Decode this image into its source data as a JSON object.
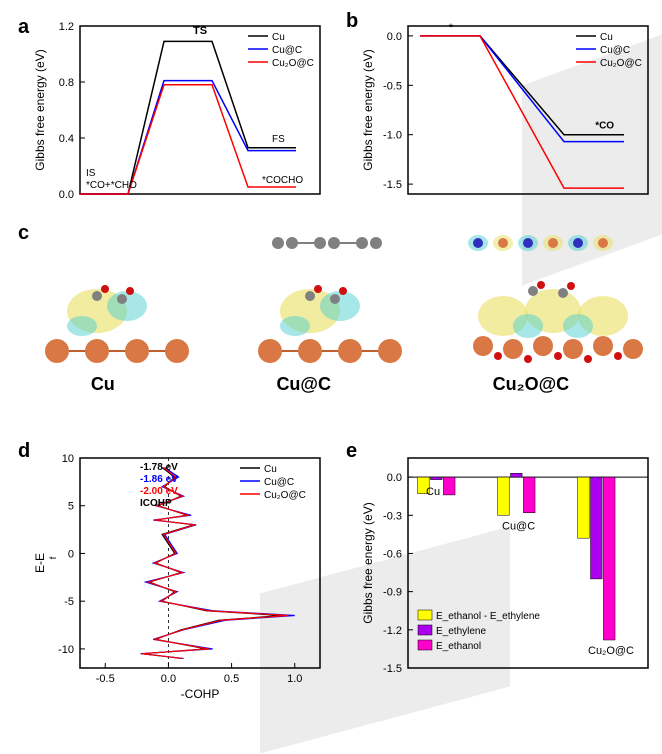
{
  "panel_a": {
    "label": "a",
    "type": "line",
    "title": "TS",
    "xlabel": "",
    "ylabel": "Gibbs free energy (eV)",
    "label_fontsize": 12,
    "annotations": {
      "IS": "IS",
      "CO_CHO": "*CO+*CHO",
      "TS": "TS",
      "FS": "FS",
      "COCHO": "*COCHO"
    },
    "legend": [
      "Cu",
      "Cu@C",
      "Cu₂O@C"
    ],
    "legend_colors": [
      "#000000",
      "#0000ff",
      "#ff0000"
    ],
    "ylim": [
      0,
      1.2
    ],
    "yticks": [
      0.0,
      0.4,
      0.8,
      1.2
    ],
    "x_segments": [
      0,
      0.2,
      0.35,
      0.55,
      0.7,
      0.9
    ],
    "series": {
      "Cu": {
        "color": "#000000",
        "y": [
          0.0,
          0.0,
          1.09,
          1.09,
          0.33,
          0.33
        ]
      },
      "Cu@C": {
        "color": "#0000ff",
        "y": [
          0.0,
          0.0,
          0.81,
          0.81,
          0.31,
          0.31
        ]
      },
      "Cu2O@C": {
        "color": "#ff0000",
        "y": [
          0.0,
          0.0,
          0.78,
          0.78,
          0.05,
          0.05
        ]
      }
    },
    "background_color": "#ffffff",
    "tick_fontsize": 11,
    "line_width": 1.5
  },
  "panel_b": {
    "label": "b",
    "type": "line",
    "ylabel": "Gibbs free energy (eV)",
    "label_fontsize": 12,
    "annotations": {
      "star": "*",
      "CO": "*CO"
    },
    "legend": [
      "Cu",
      "Cu@C",
      "Cu₂O@C"
    ],
    "legend_colors": [
      "#000000",
      "#0000ff",
      "#ff0000"
    ],
    "ylim": [
      -1.6,
      0.1
    ],
    "yticks": [
      0.0,
      -0.5,
      -1.0,
      -1.5
    ],
    "x_segments": [
      0.05,
      0.3,
      0.65,
      0.9
    ],
    "series": {
      "Cu": {
        "color": "#000000",
        "y": [
          0.0,
          0.0,
          -1.0,
          -1.0
        ]
      },
      "Cu@C": {
        "color": "#0000ff",
        "y": [
          0.0,
          0.0,
          -1.07,
          -1.07
        ]
      },
      "Cu2O@C": {
        "color": "#ff0000",
        "y": [
          0.0,
          0.0,
          -1.54,
          -1.54
        ]
      }
    },
    "background_color": "#ffffff",
    "tick_fontsize": 11,
    "line_width": 1.5
  },
  "panel_c": {
    "label": "c",
    "type": "infographic",
    "labels": [
      "Cu",
      "Cu@C",
      "Cu₂O@C"
    ],
    "atom_colors": {
      "Cu": "#d97844",
      "C": "#808080",
      "O": "#d01010",
      "H": "#eeeeee"
    },
    "cloud_colors": {
      "yellow": "#e8e060",
      "cyan": "#50d0d0"
    }
  },
  "panel_d": {
    "label": "d",
    "type": "line",
    "ylabel": "E-E_f",
    "xlabel": "-COHP",
    "label_fontsize": 12,
    "legend": [
      "Cu",
      "Cu@C",
      "Cu₂O@C"
    ],
    "legend_colors": [
      "#000000",
      "#0000ff",
      "#ff0000"
    ],
    "icohp_label": "ICOHP",
    "icohp_values": [
      "-1.78 eV",
      "-1.86 eV",
      "-2.00 eV"
    ],
    "icohp_colors": [
      "#000000",
      "#0000ff",
      "#ff0000"
    ],
    "ylim": [
      -12,
      10
    ],
    "yticks": [
      -10,
      -5,
      0,
      5,
      10
    ],
    "xlim": [
      -0.7,
      1.2
    ],
    "xticks": [
      -0.5,
      0.0,
      0.5,
      1.0
    ],
    "background_color": "#ffffff",
    "tick_fontsize": 11,
    "line_width": 1.2,
    "series": {
      "Cu": {
        "color": "#000000",
        "points": [
          [
            -0.05,
            9
          ],
          [
            0.05,
            8
          ],
          [
            -0.03,
            7
          ],
          [
            0.1,
            6
          ],
          [
            -0.08,
            5
          ],
          [
            0.15,
            4
          ],
          [
            -0.1,
            3.5
          ],
          [
            0.2,
            3
          ],
          [
            -0.05,
            2
          ],
          [
            0.0,
            1
          ],
          [
            0.05,
            0
          ],
          [
            -0.1,
            -1
          ],
          [
            0.1,
            -2
          ],
          [
            -0.15,
            -3
          ],
          [
            0.05,
            -4
          ],
          [
            -0.05,
            -5
          ],
          [
            0.3,
            -6
          ],
          [
            0.9,
            -6.5
          ],
          [
            0.4,
            -7
          ],
          [
            0.1,
            -8
          ],
          [
            -0.1,
            -9
          ],
          [
            0.3,
            -10
          ],
          [
            -0.2,
            -10.5
          ],
          [
            0.1,
            -11
          ]
        ]
      },
      "Cu@C": {
        "color": "#0000ff",
        "points": [
          [
            -0.03,
            9
          ],
          [
            0.08,
            8
          ],
          [
            -0.05,
            7
          ],
          [
            0.12,
            6
          ],
          [
            -0.1,
            5
          ],
          [
            0.18,
            4
          ],
          [
            -0.12,
            3.5
          ],
          [
            0.22,
            3
          ],
          [
            -0.03,
            2
          ],
          [
            0.02,
            1
          ],
          [
            0.07,
            0
          ],
          [
            -0.12,
            -1
          ],
          [
            0.12,
            -2
          ],
          [
            -0.18,
            -3
          ],
          [
            0.07,
            -4
          ],
          [
            -0.07,
            -5
          ],
          [
            0.35,
            -6
          ],
          [
            1.0,
            -6.5
          ],
          [
            0.45,
            -7
          ],
          [
            0.12,
            -8
          ],
          [
            -0.12,
            -9
          ],
          [
            0.35,
            -10
          ],
          [
            -0.22,
            -10.5
          ],
          [
            0.12,
            -11
          ]
        ]
      },
      "Cu2O@C": {
        "color": "#ff0000",
        "points": [
          [
            -0.04,
            9
          ],
          [
            0.06,
            8
          ],
          [
            -0.04,
            7
          ],
          [
            0.11,
            6
          ],
          [
            -0.09,
            5
          ],
          [
            0.16,
            4
          ],
          [
            -0.11,
            3.5
          ],
          [
            0.21,
            3
          ],
          [
            -0.04,
            2
          ],
          [
            0.01,
            1
          ],
          [
            0.06,
            0
          ],
          [
            -0.11,
            -1
          ],
          [
            0.11,
            -2
          ],
          [
            -0.16,
            -3
          ],
          [
            0.06,
            -4
          ],
          [
            -0.06,
            -5
          ],
          [
            0.32,
            -6
          ],
          [
            0.95,
            -6.5
          ],
          [
            0.42,
            -7
          ],
          [
            0.11,
            -8
          ],
          [
            -0.11,
            -9
          ],
          [
            0.32,
            -10
          ],
          [
            -0.21,
            -10.5
          ],
          [
            0.11,
            -11
          ]
        ]
      }
    }
  },
  "panel_e": {
    "label": "e",
    "type": "bar",
    "ylabel": "Gibbs free energy (eV)",
    "label_fontsize": 12,
    "categories": [
      "Cu",
      "Cu@C",
      "Cu₂O@C"
    ],
    "legend": [
      "E_ethanol - E_ethylene",
      "E_ethylene",
      "E_ethanol"
    ],
    "legend_colors": [
      "#ffff00",
      "#aa00ee",
      "#ff00cc"
    ],
    "ylim": [
      -1.5,
      0.15
    ],
    "yticks": [
      0.0,
      -0.3,
      -0.6,
      -0.9,
      -1.2,
      -1.5
    ],
    "bar_width": 0.22,
    "series": {
      "yellow": {
        "color": "#ffff00",
        "values": [
          -0.13,
          -0.3,
          -0.48
        ]
      },
      "purple": {
        "color": "#aa00ee",
        "values": [
          -0.02,
          0.03,
          -0.8
        ]
      },
      "magenta": {
        "color": "#ff00cc",
        "values": [
          -0.14,
          -0.28,
          -1.28
        ]
      }
    },
    "background_color": "#ffffff",
    "tick_fontsize": 11
  }
}
